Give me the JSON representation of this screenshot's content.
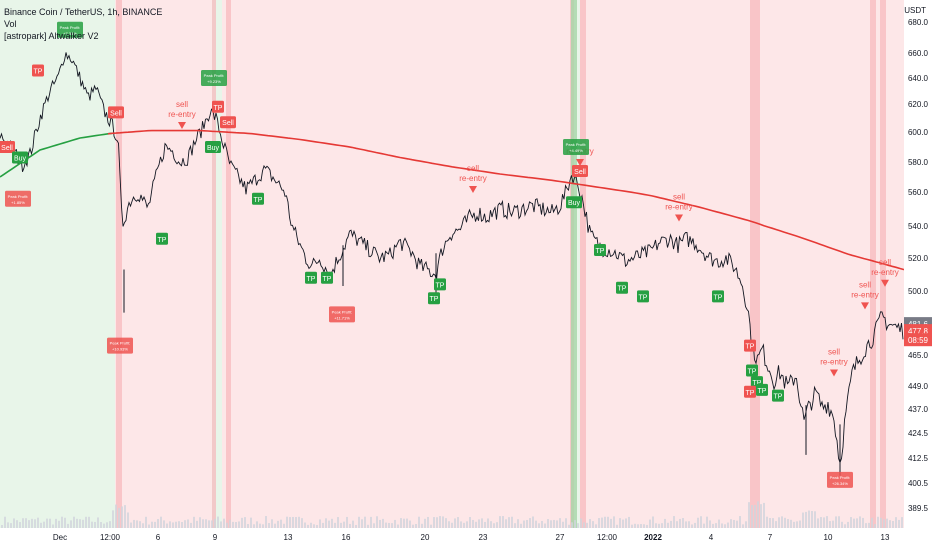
{
  "header": {
    "symbol": "Binance Coin / TetherUS, 1h, BINANCE",
    "indicator_1": "Vol",
    "indicator_2": "[astropark] Altwalker V2",
    "currency": "USDT"
  },
  "price_badges": [
    {
      "label": "481.6",
      "value": 481.6,
      "color": "#787b86"
    },
    {
      "label": "477.8",
      "value": 477.8,
      "color": "#ef5350"
    },
    {
      "label": "08:59",
      "value": 474.0,
      "color": "#ef5350"
    }
  ],
  "colors": {
    "candle": "#131722",
    "ma_up": "#26a042",
    "ma_down": "#e53935",
    "bg_green": "#e8f5e9",
    "bg_red": "#fde7e8",
    "buy_tp": "#26a042",
    "sell_tp": "#ef5350",
    "reentry": "#ef5350"
  },
  "chart_data": {
    "type": "line",
    "title": "Binance Coin / TetherUS, 1h, BINANCE",
    "xlabel": "",
    "ylabel": "",
    "ylim": [
      386,
      690
    ],
    "y_ticks": [
      389.5,
      400.5,
      412.5,
      424.5,
      437.0,
      449.0,
      465.0,
      480.0,
      500.0,
      520.0,
      540.0,
      560.0,
      580.0,
      600.0,
      620.0,
      640.0,
      660.0,
      680.0
    ],
    "y_tick_labels": [
      "389.5",
      "400.5",
      "412.5",
      "424.5",
      "437.0",
      "449.0",
      "465.0",
      "480.0",
      "500.0",
      "520.0",
      "540.0",
      "560.0",
      "580.0",
      "600.0",
      "620.0",
      "640.0",
      "660.0",
      "680.0"
    ],
    "x_tick_labels": [
      "Dec",
      "12:00",
      "6",
      "9",
      "13",
      "16",
      "20",
      "23",
      "27",
      "12:00",
      "2022",
      "4",
      "7",
      "10",
      "13"
    ],
    "x_tick_index": [
      60,
      110,
      158,
      215,
      288,
      346,
      425,
      483,
      560,
      607,
      653,
      711,
      770,
      828,
      885
    ],
    "price_series": {
      "name": "BNBUSDT",
      "x_index": [
        0,
        8,
        16,
        22,
        30,
        40,
        50,
        58,
        65,
        72,
        80,
        88,
        96,
        104,
        112,
        118,
        122,
        126,
        130,
        138,
        148,
        158,
        165,
        172,
        180,
        188,
        196,
        202,
        210,
        216,
        222,
        230,
        238,
        246,
        255,
        265,
        275,
        285,
        292,
        300,
        306,
        312,
        320,
        330,
        340,
        350,
        360,
        370,
        380,
        390,
        400,
        410,
        420,
        430,
        436,
        442,
        450,
        460,
        470,
        478,
        486,
        494,
        502,
        512,
        522,
        532,
        542,
        552,
        560,
        566,
        572,
        578,
        584,
        590,
        596,
        602,
        610,
        618,
        626,
        634,
        642,
        650,
        660,
        670,
        678,
        686,
        694,
        702,
        710,
        718,
        726,
        734,
        742,
        748,
        752,
        758,
        762,
        768,
        774,
        780,
        788,
        796,
        804,
        810,
        816,
        822,
        828,
        834,
        840,
        846,
        852,
        858,
        864,
        870,
        876,
        882,
        888,
        896,
        904
      ],
      "y": [
        598,
        592,
        585,
        578,
        585,
        610,
        630,
        640,
        660,
        655,
        640,
        625,
        632,
        615,
        605,
        595,
        540,
        548,
        555,
        560,
        550,
        575,
        590,
        588,
        580,
        583,
        595,
        602,
        615,
        610,
        595,
        578,
        570,
        562,
        568,
        575,
        568,
        560,
        540,
        528,
        520,
        515,
        520,
        510,
        522,
        535,
        530,
        525,
        520,
        522,
        530,
        525,
        515,
        512,
        510,
        525,
        535,
        538,
        545,
        548,
        545,
        548,
        550,
        548,
        550,
        552,
        550,
        548,
        552,
        560,
        572,
        565,
        552,
        535,
        530,
        526,
        525,
        522,
        518,
        520,
        522,
        524,
        530,
        532,
        528,
        532,
        530,
        525,
        520,
        518,
        520,
        515,
        505,
        490,
        470,
        462,
        468,
        460,
        452,
        456,
        448,
        455,
        430,
        440,
        445,
        438,
        440,
        432,
        410,
        435,
        455,
        462,
        468,
        472,
        478,
        486,
        482,
        480,
        478
      ]
    },
    "ma_series": {
      "name": "MA",
      "x_index": [
        0,
        40,
        80,
        110,
        150,
        200,
        250,
        300,
        350,
        400,
        450,
        500,
        550,
        600,
        650,
        700,
        750,
        800,
        850,
        904
      ],
      "y": [
        570,
        588,
        596,
        599,
        601,
        601,
        599,
        595,
        590,
        583,
        577,
        572,
        568,
        563,
        558,
        551,
        543,
        533,
        522,
        513
      ],
      "cross_index": 112
    },
    "bg_zones": [
      {
        "from": 0,
        "to": 115,
        "type": "green"
      },
      {
        "from": 115,
        "to": 212,
        "type": "red"
      },
      {
        "from": 212,
        "to": 222,
        "type": "green"
      },
      {
        "from": 222,
        "to": 570,
        "type": "red"
      },
      {
        "from": 570,
        "to": 580,
        "type": "green"
      },
      {
        "from": 580,
        "to": 904,
        "type": "red"
      }
    ],
    "annotations": [
      {
        "text": "TP",
        "kind": "sell_tp",
        "x_index": 38,
        "price": 646
      },
      {
        "text": "TP",
        "kind": "sell_tp",
        "x_index": 218,
        "price": 618
      },
      {
        "text": "Sell",
        "kind": "sell_tp",
        "x_index": 116,
        "price": 614
      },
      {
        "text": "Sell",
        "kind": "sell_tp",
        "x_index": 228,
        "price": 607
      },
      {
        "text": "Sell",
        "kind": "sell_tp",
        "x_index": 7,
        "price": 590
      },
      {
        "text": "Sell",
        "kind": "sell_tp",
        "x_index": 580,
        "price": 574
      },
      {
        "text": "Buy",
        "kind": "buy_tp",
        "x_index": 20,
        "price": 583
      },
      {
        "text": "Buy",
        "kind": "buy_tp",
        "x_index": 213,
        "price": 590
      },
      {
        "text": "Buy",
        "kind": "buy_tp",
        "x_index": 574,
        "price": 554
      },
      {
        "text": "TP",
        "kind": "buy_tp",
        "x_index": 162,
        "price": 532
      },
      {
        "text": "TP",
        "kind": "buy_tp",
        "x_index": 258,
        "price": 556
      },
      {
        "text": "TP",
        "kind": "buy_tp",
        "x_index": 311,
        "price": 508
      },
      {
        "text": "TP",
        "kind": "buy_tp",
        "x_index": 327,
        "price": 508
      },
      {
        "text": "TP",
        "kind": "buy_tp",
        "x_index": 434,
        "price": 496
      },
      {
        "text": "TP",
        "kind": "buy_tp",
        "x_index": 440,
        "price": 504
      },
      {
        "text": "TP",
        "kind": "buy_tp",
        "x_index": 600,
        "price": 525
      },
      {
        "text": "TP",
        "kind": "buy_tp",
        "x_index": 622,
        "price": 502
      },
      {
        "text": "TP",
        "kind": "buy_tp",
        "x_index": 643,
        "price": 497
      },
      {
        "text": "TP",
        "kind": "buy_tp",
        "x_index": 718,
        "price": 497
      },
      {
        "text": "TP",
        "kind": "sell_tp",
        "x_index": 750,
        "price": 470
      },
      {
        "text": "TP",
        "kind": "buy_tp",
        "x_index": 752,
        "price": 457
      },
      {
        "text": "TP",
        "kind": "buy_tp",
        "x_index": 757,
        "price": 451
      },
      {
        "text": "TP",
        "kind": "buy_tp",
        "x_index": 762,
        "price": 447
      },
      {
        "text": "TP",
        "kind": "sell_tp",
        "x_index": 750,
        "price": 446
      },
      {
        "text": "TP",
        "kind": "buy_tp",
        "x_index": 778,
        "price": 444
      }
    ],
    "reentries": [
      {
        "line1": "sell",
        "line2": "re-entry",
        "x_index": 182,
        "price": 605
      },
      {
        "line1": "sell",
        "line2": "re-entry",
        "x_index": 473,
        "price": 562
      },
      {
        "line1": "",
        "line2": "re-entry",
        "x_index": 580,
        "price": 580
      },
      {
        "line1": "sell",
        "line2": "re-entry",
        "x_index": 679,
        "price": 545
      },
      {
        "line1": "sell",
        "line2": "re-entry",
        "x_index": 834,
        "price": 456
      },
      {
        "line1": "sell",
        "line2": "re-entry",
        "x_index": 865,
        "price": 492
      },
      {
        "line1": "sell",
        "line2": "re-entry",
        "x_index": 885,
        "price": 505
      }
    ],
    "peak_boxes": [
      {
        "line1": "Peak Profit:",
        "line2": "+7.33%",
        "kind": "buy",
        "x_index": 70,
        "price": 675
      },
      {
        "line1": "Peak Profit:",
        "line2": "+9.23%",
        "kind": "buy",
        "x_index": 214,
        "price": 640
      },
      {
        "line1": "Peak Profit:",
        "line2": "+1.85%",
        "kind": "sell",
        "x_index": 18,
        "price": 556
      },
      {
        "line1": "Peak Profit:",
        "line2": "+4.49%",
        "kind": "buy",
        "x_index": 576,
        "price": 590
      },
      {
        "line1": "Peak Profit:",
        "line2": "+11.71%",
        "kind": "sell",
        "x_index": 342,
        "price": 487
      },
      {
        "line1": "Peak Profit:",
        "line2": "+10.93%",
        "kind": "sell",
        "x_index": 120,
        "price": 470
      },
      {
        "line1": "Peak Profit:",
        "line2": "+26.34%",
        "kind": "sell",
        "x_index": 840,
        "price": 402
      }
    ]
  }
}
